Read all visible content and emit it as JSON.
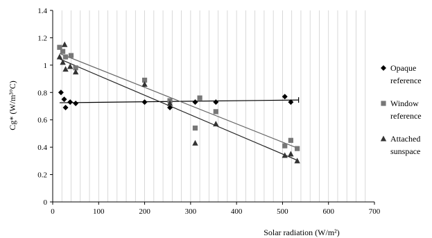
{
  "chart_data": {
    "type": "scatter",
    "title": "",
    "xlabel": "Solar radiation (W/m²)",
    "ylabel": "Cg* (W/m³°C)",
    "xlim": [
      0,
      700
    ],
    "ylim": [
      0,
      1.4
    ],
    "xticks": [
      "0",
      "100",
      "200",
      "300",
      "400",
      "500",
      "600",
      "700"
    ],
    "yticks": [
      "0",
      "0.2",
      "0.4",
      "0.6",
      "0.8",
      "1",
      "1.2",
      "1.4"
    ],
    "grid": "vertical",
    "legend_position": "right",
    "series": [
      {
        "name": "Opaque reference",
        "marker": "diamond",
        "color": "#000000",
        "x": [
          18,
          25,
          28,
          38,
          50,
          200,
          255,
          310,
          355,
          505,
          518
        ],
        "y": [
          0.8,
          0.75,
          0.69,
          0.73,
          0.72,
          0.73,
          0.69,
          0.73,
          0.73,
          0.77,
          0.73
        ],
        "trend": {
          "x": [
            15,
            535
          ],
          "y": [
            0.725,
            0.745
          ]
        }
      },
      {
        "name": "Window reference",
        "marker": "square",
        "color": "#777777",
        "x": [
          15,
          22,
          28,
          40,
          50,
          200,
          255,
          310,
          320,
          355,
          505,
          518,
          532
        ],
        "y": [
          1.13,
          1.1,
          1.06,
          1.07,
          0.98,
          0.89,
          0.74,
          0.54,
          0.76,
          0.66,
          0.41,
          0.45,
          0.39
        ],
        "trend": {
          "x": [
            15,
            535
          ],
          "y": [
            1.085,
            0.39
          ]
        }
      },
      {
        "name": "Attached sunspace",
        "marker": "triangle",
        "color": "#333333",
        "x": [
          15,
          22,
          26,
          28,
          38,
          50,
          200,
          255,
          310,
          355,
          505,
          518,
          532
        ],
        "y": [
          1.06,
          1.02,
          1.15,
          0.97,
          0.99,
          0.95,
          0.86,
          0.72,
          0.43,
          0.57,
          0.34,
          0.35,
          0.3
        ],
        "trend": {
          "x": [
            15,
            535
          ],
          "y": [
            1.045,
            0.3
          ]
        }
      }
    ]
  }
}
